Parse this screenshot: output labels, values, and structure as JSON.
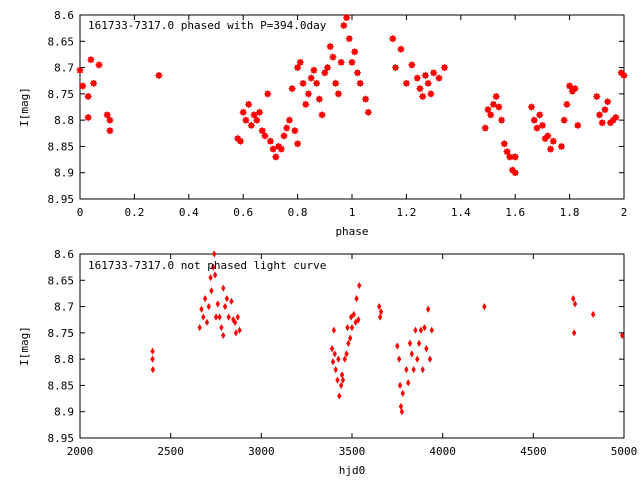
{
  "chart_data": [
    {
      "type": "scatter",
      "title": "161733-7317.0 phased with P=394.0day",
      "xlabel": "phase",
      "ylabel": "I[mag]",
      "xlim": [
        0,
        2
      ],
      "ylim": [
        8.95,
        8.6
      ],
      "y_inverted": true,
      "xticks": [
        "0",
        "0.2",
        "0.4",
        "0.6",
        "0.8",
        "1",
        "1.2",
        "1.4",
        "1.6",
        "1.8",
        "2"
      ],
      "yticks": [
        "8.6",
        "8.65",
        "8.7",
        "8.75",
        "8.8",
        "8.85",
        "8.9",
        "8.95"
      ],
      "grid": false,
      "marker_color": "#ff0000",
      "series": [
        {
          "points": [
            [
              0.0,
              8.705
            ],
            [
              0.01,
              8.735
            ],
            [
              0.03,
              8.755
            ],
            [
              0.03,
              8.795
            ],
            [
              0.04,
              8.685
            ],
            [
              0.05,
              8.73
            ],
            [
              0.07,
              8.695
            ],
            [
              0.1,
              8.79
            ],
            [
              0.11,
              8.8
            ],
            [
              0.11,
              8.82
            ],
            [
              0.29,
              8.715
            ],
            [
              0.58,
              8.835
            ],
            [
              0.59,
              8.84
            ],
            [
              0.6,
              8.785
            ],
            [
              0.61,
              8.8
            ],
            [
              0.62,
              8.77
            ],
            [
              0.63,
              8.81
            ],
            [
              0.64,
              8.79
            ],
            [
              0.65,
              8.8
            ],
            [
              0.66,
              8.785
            ],
            [
              0.67,
              8.82
            ],
            [
              0.68,
              8.83
            ],
            [
              0.69,
              8.75
            ],
            [
              0.7,
              8.84
            ],
            [
              0.71,
              8.855
            ],
            [
              0.72,
              8.87
            ],
            [
              0.73,
              8.85
            ],
            [
              0.74,
              8.855
            ],
            [
              0.75,
              8.83
            ],
            [
              0.76,
              8.815
            ],
            [
              0.77,
              8.8
            ],
            [
              0.78,
              8.74
            ],
            [
              0.79,
              8.82
            ],
            [
              0.8,
              8.845
            ],
            [
              0.8,
              8.7
            ],
            [
              0.81,
              8.69
            ],
            [
              0.82,
              8.73
            ],
            [
              0.83,
              8.77
            ],
            [
              0.84,
              8.75
            ],
            [
              0.85,
              8.72
            ],
            [
              0.86,
              8.705
            ],
            [
              0.87,
              8.73
            ],
            [
              0.88,
              8.76
            ],
            [
              0.89,
              8.79
            ],
            [
              0.9,
              8.71
            ],
            [
              0.91,
              8.7
            ],
            [
              0.92,
              8.66
            ],
            [
              0.93,
              8.68
            ],
            [
              0.94,
              8.73
            ],
            [
              0.95,
              8.75
            ],
            [
              0.96,
              8.69
            ],
            [
              0.97,
              8.62
            ],
            [
              0.98,
              8.605
            ],
            [
              0.99,
              8.645
            ],
            [
              1.0,
              8.69
            ],
            [
              1.01,
              8.67
            ],
            [
              1.02,
              8.71
            ],
            [
              1.03,
              8.73
            ],
            [
              1.05,
              8.76
            ],
            [
              1.06,
              8.785
            ],
            [
              1.15,
              8.645
            ],
            [
              1.16,
              8.7
            ],
            [
              1.18,
              8.665
            ],
            [
              1.2,
              8.73
            ],
            [
              1.22,
              8.695
            ],
            [
              1.24,
              8.72
            ],
            [
              1.25,
              8.74
            ],
            [
              1.26,
              8.755
            ],
            [
              1.27,
              8.715
            ],
            [
              1.28,
              8.73
            ],
            [
              1.29,
              8.75
            ],
            [
              1.3,
              8.71
            ],
            [
              1.32,
              8.72
            ],
            [
              1.34,
              8.7
            ],
            [
              1.49,
              8.815
            ],
            [
              1.5,
              8.78
            ],
            [
              1.51,
              8.79
            ],
            [
              1.52,
              8.77
            ],
            [
              1.53,
              8.755
            ],
            [
              1.54,
              8.775
            ],
            [
              1.55,
              8.8
            ],
            [
              1.56,
              8.845
            ],
            [
              1.57,
              8.86
            ],
            [
              1.58,
              8.87
            ],
            [
              1.59,
              8.895
            ],
            [
              1.6,
              8.87
            ],
            [
              1.6,
              8.9
            ],
            [
              1.66,
              8.775
            ],
            [
              1.67,
              8.8
            ],
            [
              1.68,
              8.815
            ],
            [
              1.69,
              8.79
            ],
            [
              1.7,
              8.81
            ],
            [
              1.71,
              8.835
            ],
            [
              1.72,
              8.83
            ],
            [
              1.73,
              8.855
            ],
            [
              1.74,
              8.84
            ],
            [
              1.77,
              8.85
            ],
            [
              1.78,
              8.8
            ],
            [
              1.79,
              8.77
            ],
            [
              1.8,
              8.735
            ],
            [
              1.81,
              8.745
            ],
            [
              1.82,
              8.74
            ],
            [
              1.83,
              8.81
            ],
            [
              1.9,
              8.755
            ],
            [
              1.91,
              8.79
            ],
            [
              1.92,
              8.805
            ],
            [
              1.93,
              8.78
            ],
            [
              1.94,
              8.765
            ],
            [
              1.95,
              8.805
            ],
            [
              1.96,
              8.8
            ],
            [
              1.97,
              8.795
            ],
            [
              1.99,
              8.71
            ],
            [
              2.0,
              8.715
            ]
          ]
        }
      ]
    },
    {
      "type": "scatter",
      "title": "161733-7317.0 not phased light curve",
      "xlabel": "hjd0",
      "ylabel": "I[mag]",
      "xlim": [
        2000,
        5000
      ],
      "ylim": [
        8.95,
        8.6
      ],
      "y_inverted": true,
      "xticks": [
        "2000",
        "2500",
        "3000",
        "3500",
        "4000",
        "4500",
        "5000"
      ],
      "yticks": [
        "8.6",
        "8.65",
        "8.7",
        "8.75",
        "8.8",
        "8.85",
        "8.9",
        "8.95"
      ],
      "grid": false,
      "marker_color": "#ff0000",
      "series": [
        {
          "points": [
            [
              2400,
              8.785
            ],
            [
              2400,
              8.8
            ],
            [
              2402,
              8.82
            ],
            [
              2660,
              8.74
            ],
            [
              2670,
              8.705
            ],
            [
              2680,
              8.72
            ],
            [
              2690,
              8.685
            ],
            [
              2700,
              8.73
            ],
            [
              2710,
              8.7
            ],
            [
              2720,
              8.645
            ],
            [
              2725,
              8.67
            ],
            [
              2735,
              8.625
            ],
            [
              2740,
              8.6
            ],
            [
              2745,
              8.64
            ],
            [
              2750,
              8.72
            ],
            [
              2760,
              8.695
            ],
            [
              2770,
              8.72
            ],
            [
              2780,
              8.74
            ],
            [
              2790,
              8.665
            ],
            [
              2800,
              8.7
            ],
            [
              2810,
              8.685
            ],
            [
              2820,
              8.72
            ],
            [
              2835,
              8.69
            ],
            [
              2845,
              8.725
            ],
            [
              2855,
              8.73
            ],
            [
              2860,
              8.75
            ],
            [
              2870,
              8.72
            ],
            [
              2880,
              8.745
            ],
            [
              2790,
              8.755
            ],
            [
              3390,
              8.78
            ],
            [
              3395,
              8.805
            ],
            [
              3400,
              8.745
            ],
            [
              3405,
              8.79
            ],
            [
              3410,
              8.82
            ],
            [
              3420,
              8.84
            ],
            [
              3425,
              8.8
            ],
            [
              3430,
              8.87
            ],
            [
              3440,
              8.85
            ],
            [
              3445,
              8.83
            ],
            [
              3450,
              8.84
            ],
            [
              3460,
              8.8
            ],
            [
              3470,
              8.79
            ],
            [
              3475,
              8.74
            ],
            [
              3480,
              8.77
            ],
            [
              3490,
              8.76
            ],
            [
              3495,
              8.72
            ],
            [
              3500,
              8.74
            ],
            [
              3510,
              8.715
            ],
            [
              3520,
              8.73
            ],
            [
              3525,
              8.685
            ],
            [
              3535,
              8.725
            ],
            [
              3540,
              8.66
            ],
            [
              3650,
              8.7
            ],
            [
              3655,
              8.72
            ],
            [
              3660,
              8.71
            ],
            [
              3750,
              8.775
            ],
            [
              3760,
              8.8
            ],
            [
              3765,
              8.85
            ],
            [
              3770,
              8.89
            ],
            [
              3775,
              8.9
            ],
            [
              3780,
              8.865
            ],
            [
              3800,
              8.82
            ],
            [
              3810,
              8.845
            ],
            [
              3820,
              8.77
            ],
            [
              3830,
              8.79
            ],
            [
              3840,
              8.82
            ],
            [
              3850,
              8.745
            ],
            [
              3860,
              8.8
            ],
            [
              3870,
              8.77
            ],
            [
              3880,
              8.745
            ],
            [
              3890,
              8.82
            ],
            [
              3900,
              8.74
            ],
            [
              3910,
              8.78
            ],
            [
              3920,
              8.705
            ],
            [
              3930,
              8.8
            ],
            [
              3940,
              8.745
            ],
            [
              4230,
              8.7
            ],
            [
              4720,
              8.685
            ],
            [
              4730,
              8.695
            ],
            [
              4725,
              8.75
            ],
            [
              4830,
              8.715
            ],
            [
              4990,
              8.755
            ]
          ]
        }
      ]
    }
  ]
}
